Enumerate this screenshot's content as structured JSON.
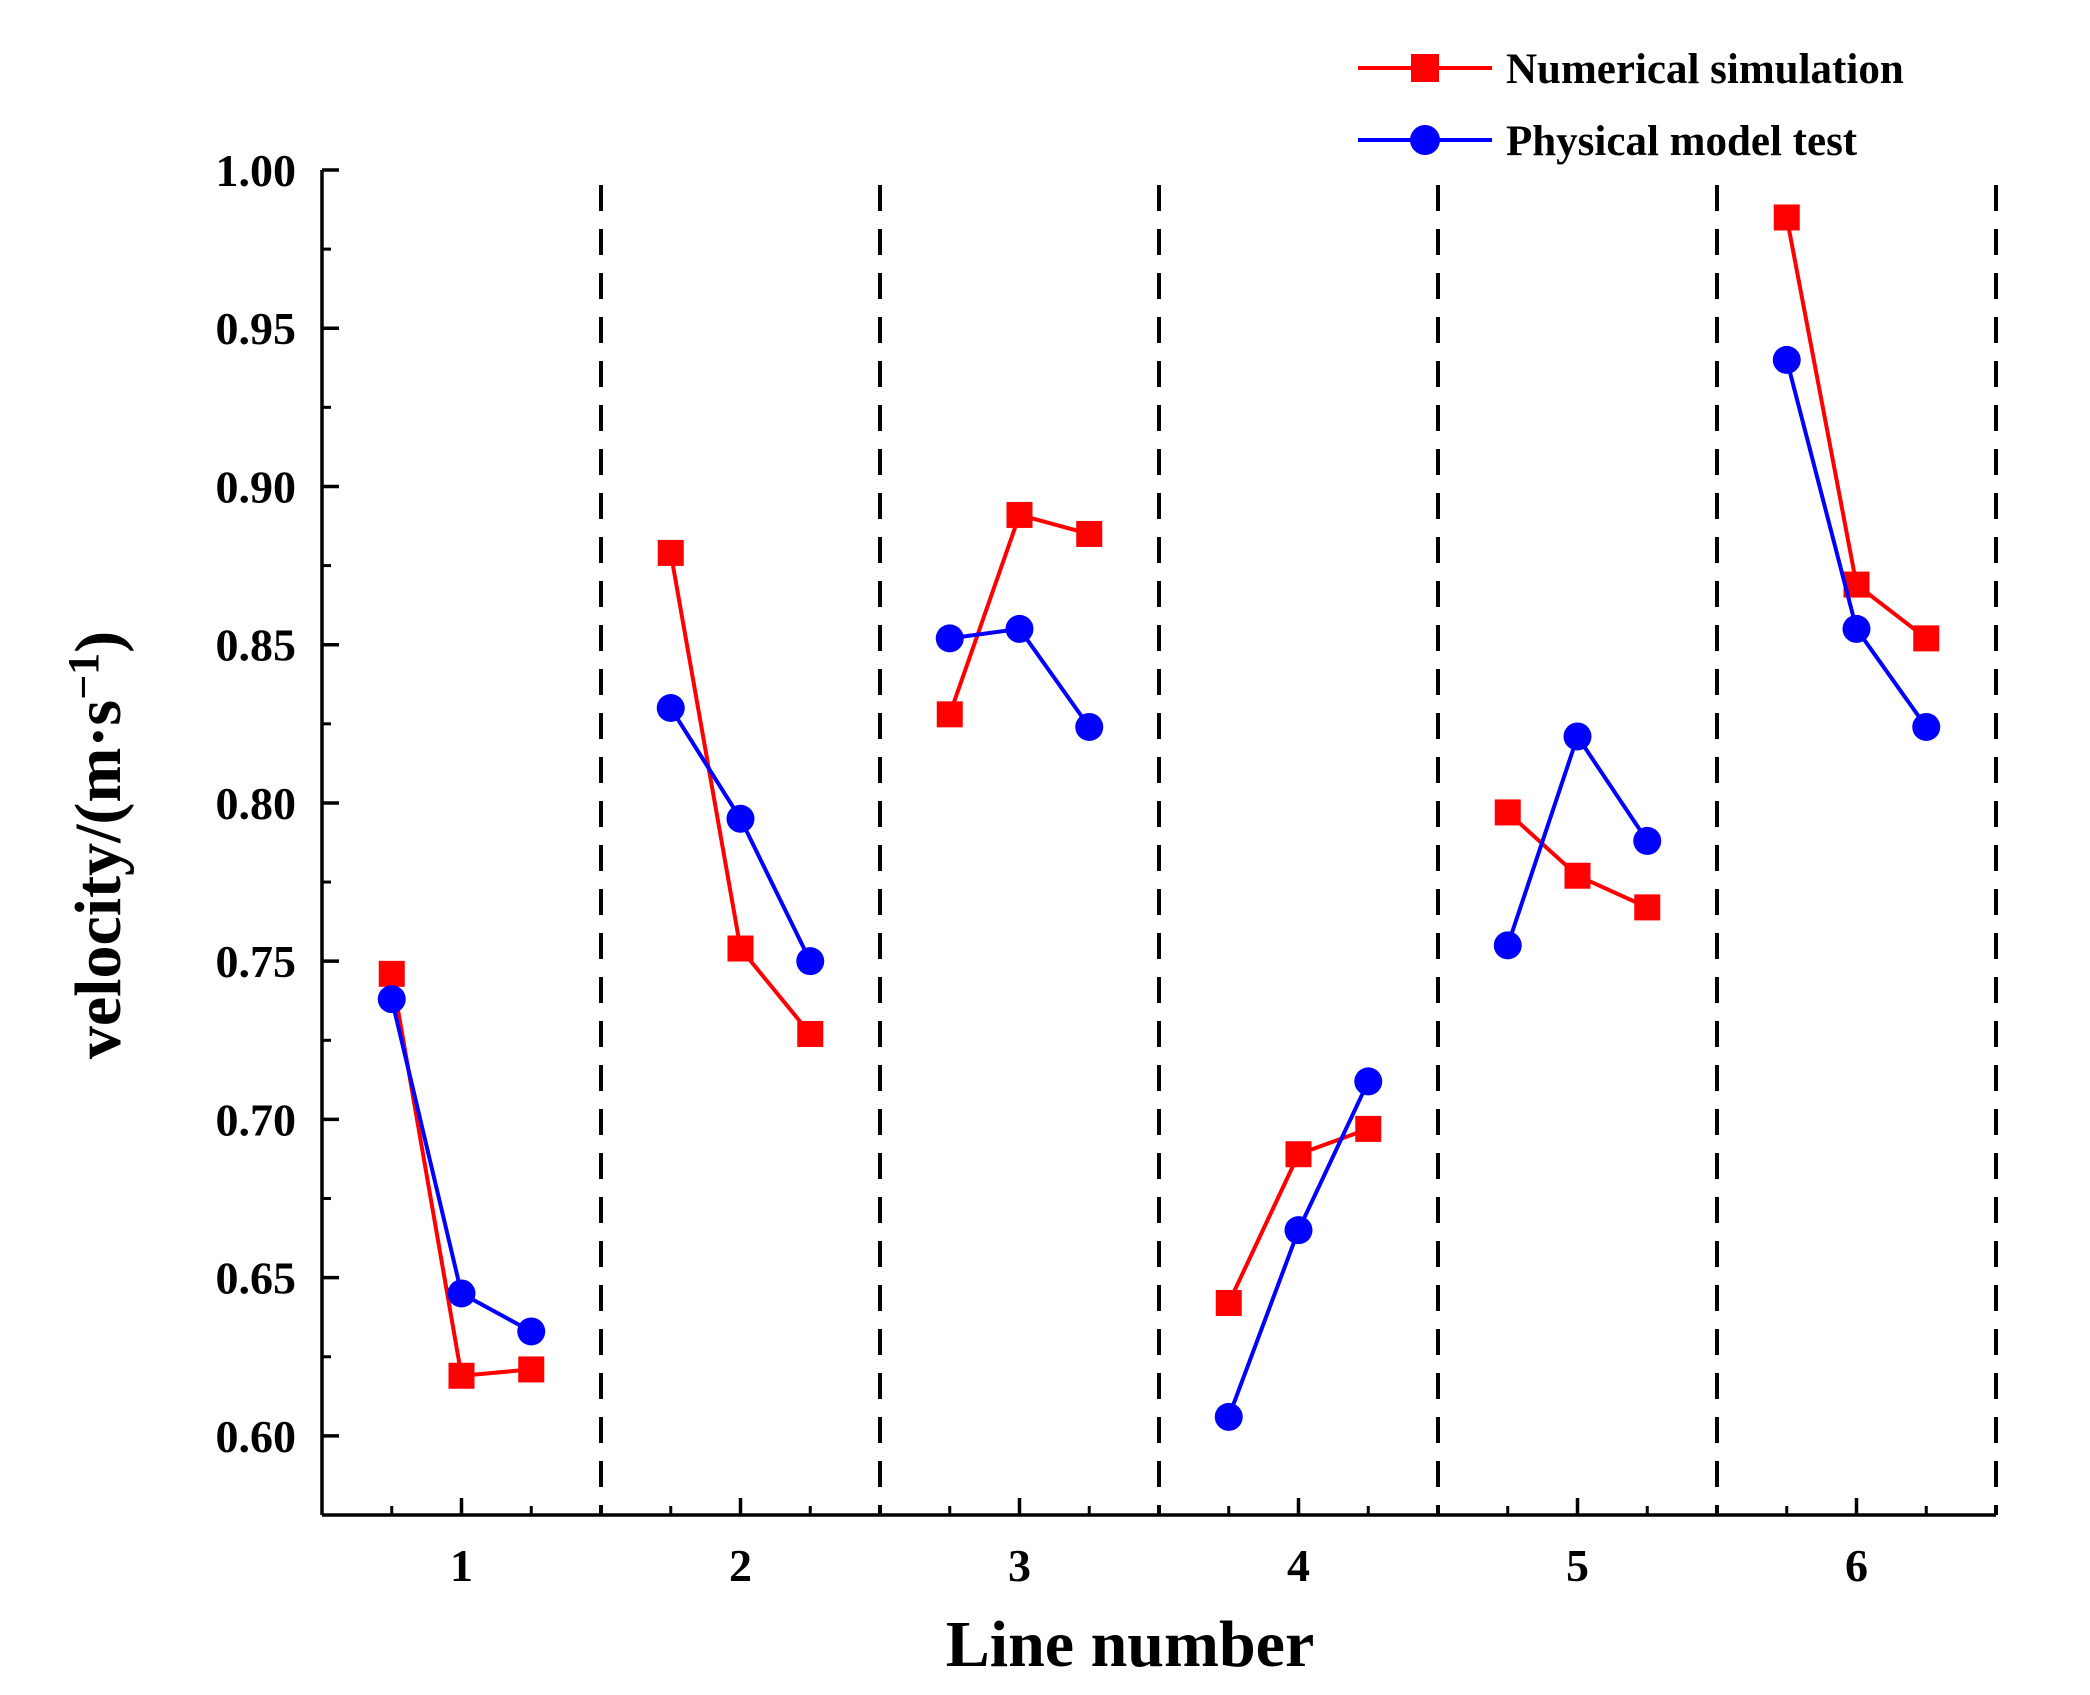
{
  "chart_data": {
    "type": "line",
    "title": "",
    "xlabel": "Line number",
    "ylabel": "velocity/(m·s",
    "ylabel_sup": "−1",
    "ylabel_close": ")",
    "xlim": [
      0.5,
      6.5
    ],
    "ylim": [
      0.575,
      1.0
    ],
    "yticks": [
      0.6,
      0.65,
      0.7,
      0.75,
      0.8,
      0.85,
      0.9,
      0.95,
      1.0
    ],
    "ytick_labels": [
      "0.60",
      "0.65",
      "0.70",
      "0.75",
      "0.80",
      "0.85",
      "0.90",
      "0.95",
      "1.00"
    ],
    "xticks": [
      1,
      2,
      3,
      4,
      5,
      6
    ],
    "xtick_labels": [
      "1",
      "2",
      "3",
      "4",
      "5",
      "6"
    ],
    "separators": [
      1.5,
      2.5,
      3.5,
      4.5,
      5.5,
      6.5
    ],
    "legend_position": "top-right",
    "series": [
      {
        "name": "Numerical simulation",
        "color": "#ff0000",
        "marker": "square",
        "groups": [
          {
            "x": [
              0.75,
              1.0,
              1.25
            ],
            "y": [
              0.746,
              0.619,
              0.621
            ]
          },
          {
            "x": [
              1.75,
              2.0,
              2.25
            ],
            "y": [
              0.879,
              0.754,
              0.727
            ]
          },
          {
            "x": [
              2.75,
              3.0,
              3.25
            ],
            "y": [
              0.828,
              0.891,
              0.885
            ]
          },
          {
            "x": [
              3.75,
              4.0,
              4.25
            ],
            "y": [
              0.642,
              0.689,
              0.697
            ]
          },
          {
            "x": [
              4.75,
              5.0,
              5.25
            ],
            "y": [
              0.797,
              0.777,
              0.767
            ]
          },
          {
            "x": [
              5.75,
              6.0,
              6.25
            ],
            "y": [
              0.985,
              0.869,
              0.852
            ]
          }
        ]
      },
      {
        "name": "Physical model test",
        "color": "#0000ff",
        "marker": "circle",
        "groups": [
          {
            "x": [
              0.75,
              1.0,
              1.25
            ],
            "y": [
              0.738,
              0.645,
              0.633
            ]
          },
          {
            "x": [
              1.75,
              2.0,
              2.25
            ],
            "y": [
              0.83,
              0.795,
              0.75
            ]
          },
          {
            "x": [
              2.75,
              3.0,
              3.25
            ],
            "y": [
              0.852,
              0.855,
              0.824
            ]
          },
          {
            "x": [
              3.75,
              4.0,
              4.25
            ],
            "y": [
              0.606,
              0.665,
              0.712
            ]
          },
          {
            "x": [
              4.75,
              5.0,
              5.25
            ],
            "y": [
              0.755,
              0.821,
              0.788
            ]
          },
          {
            "x": [
              5.75,
              6.0,
              6.25
            ],
            "y": [
              0.94,
              0.855,
              0.824
            ]
          }
        ]
      }
    ]
  }
}
